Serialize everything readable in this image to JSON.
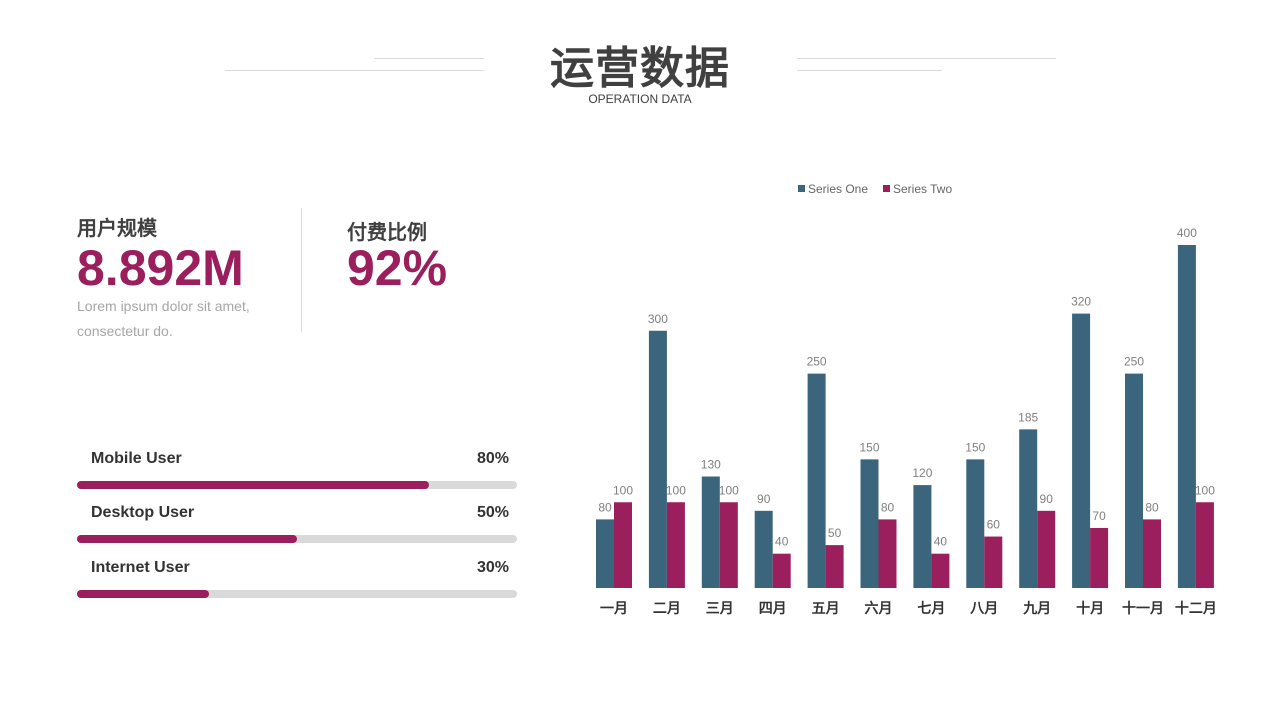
{
  "header": {
    "title": "运营数据",
    "subtitle": "OPERATION DATA"
  },
  "stats": {
    "users": {
      "label": "用户规模",
      "value": "8.892M",
      "desc_line1": "Lorem ipsum dolor sit amet,",
      "desc_line2": "consectetur do."
    },
    "paid": {
      "label": "付费比例",
      "value": "92%"
    }
  },
  "progress": [
    {
      "label": "Mobile User",
      "percent_text": "80%",
      "value": 0.8
    },
    {
      "label": "Desktop User",
      "percent_text": "50%",
      "value": 0.5
    },
    {
      "label": "Internet User",
      "percent_text": "30%",
      "value": 0.3
    }
  ],
  "colors": {
    "series_one": "#3b657c",
    "series_two": "#9b1f5c",
    "accent": "#9b1f5c",
    "track": "#d9d9d9"
  },
  "chart_data": {
    "type": "bar",
    "categories": [
      "一月",
      "二月",
      "三月",
      "四月",
      "五月",
      "六月",
      "七月",
      "八月",
      "九月",
      "十月",
      "十一月",
      "十二月"
    ],
    "series": [
      {
        "name": "Series One",
        "values": [
          80,
          300,
          130,
          90,
          250,
          150,
          120,
          150,
          185,
          320,
          250,
          400
        ]
      },
      {
        "name": "Series Two",
        "values": [
          100,
          100,
          100,
          40,
          50,
          80,
          40,
          60,
          90,
          70,
          80,
          100
        ]
      }
    ],
    "ylim": [
      0,
      400
    ],
    "legend": "top-center",
    "grid": false
  }
}
